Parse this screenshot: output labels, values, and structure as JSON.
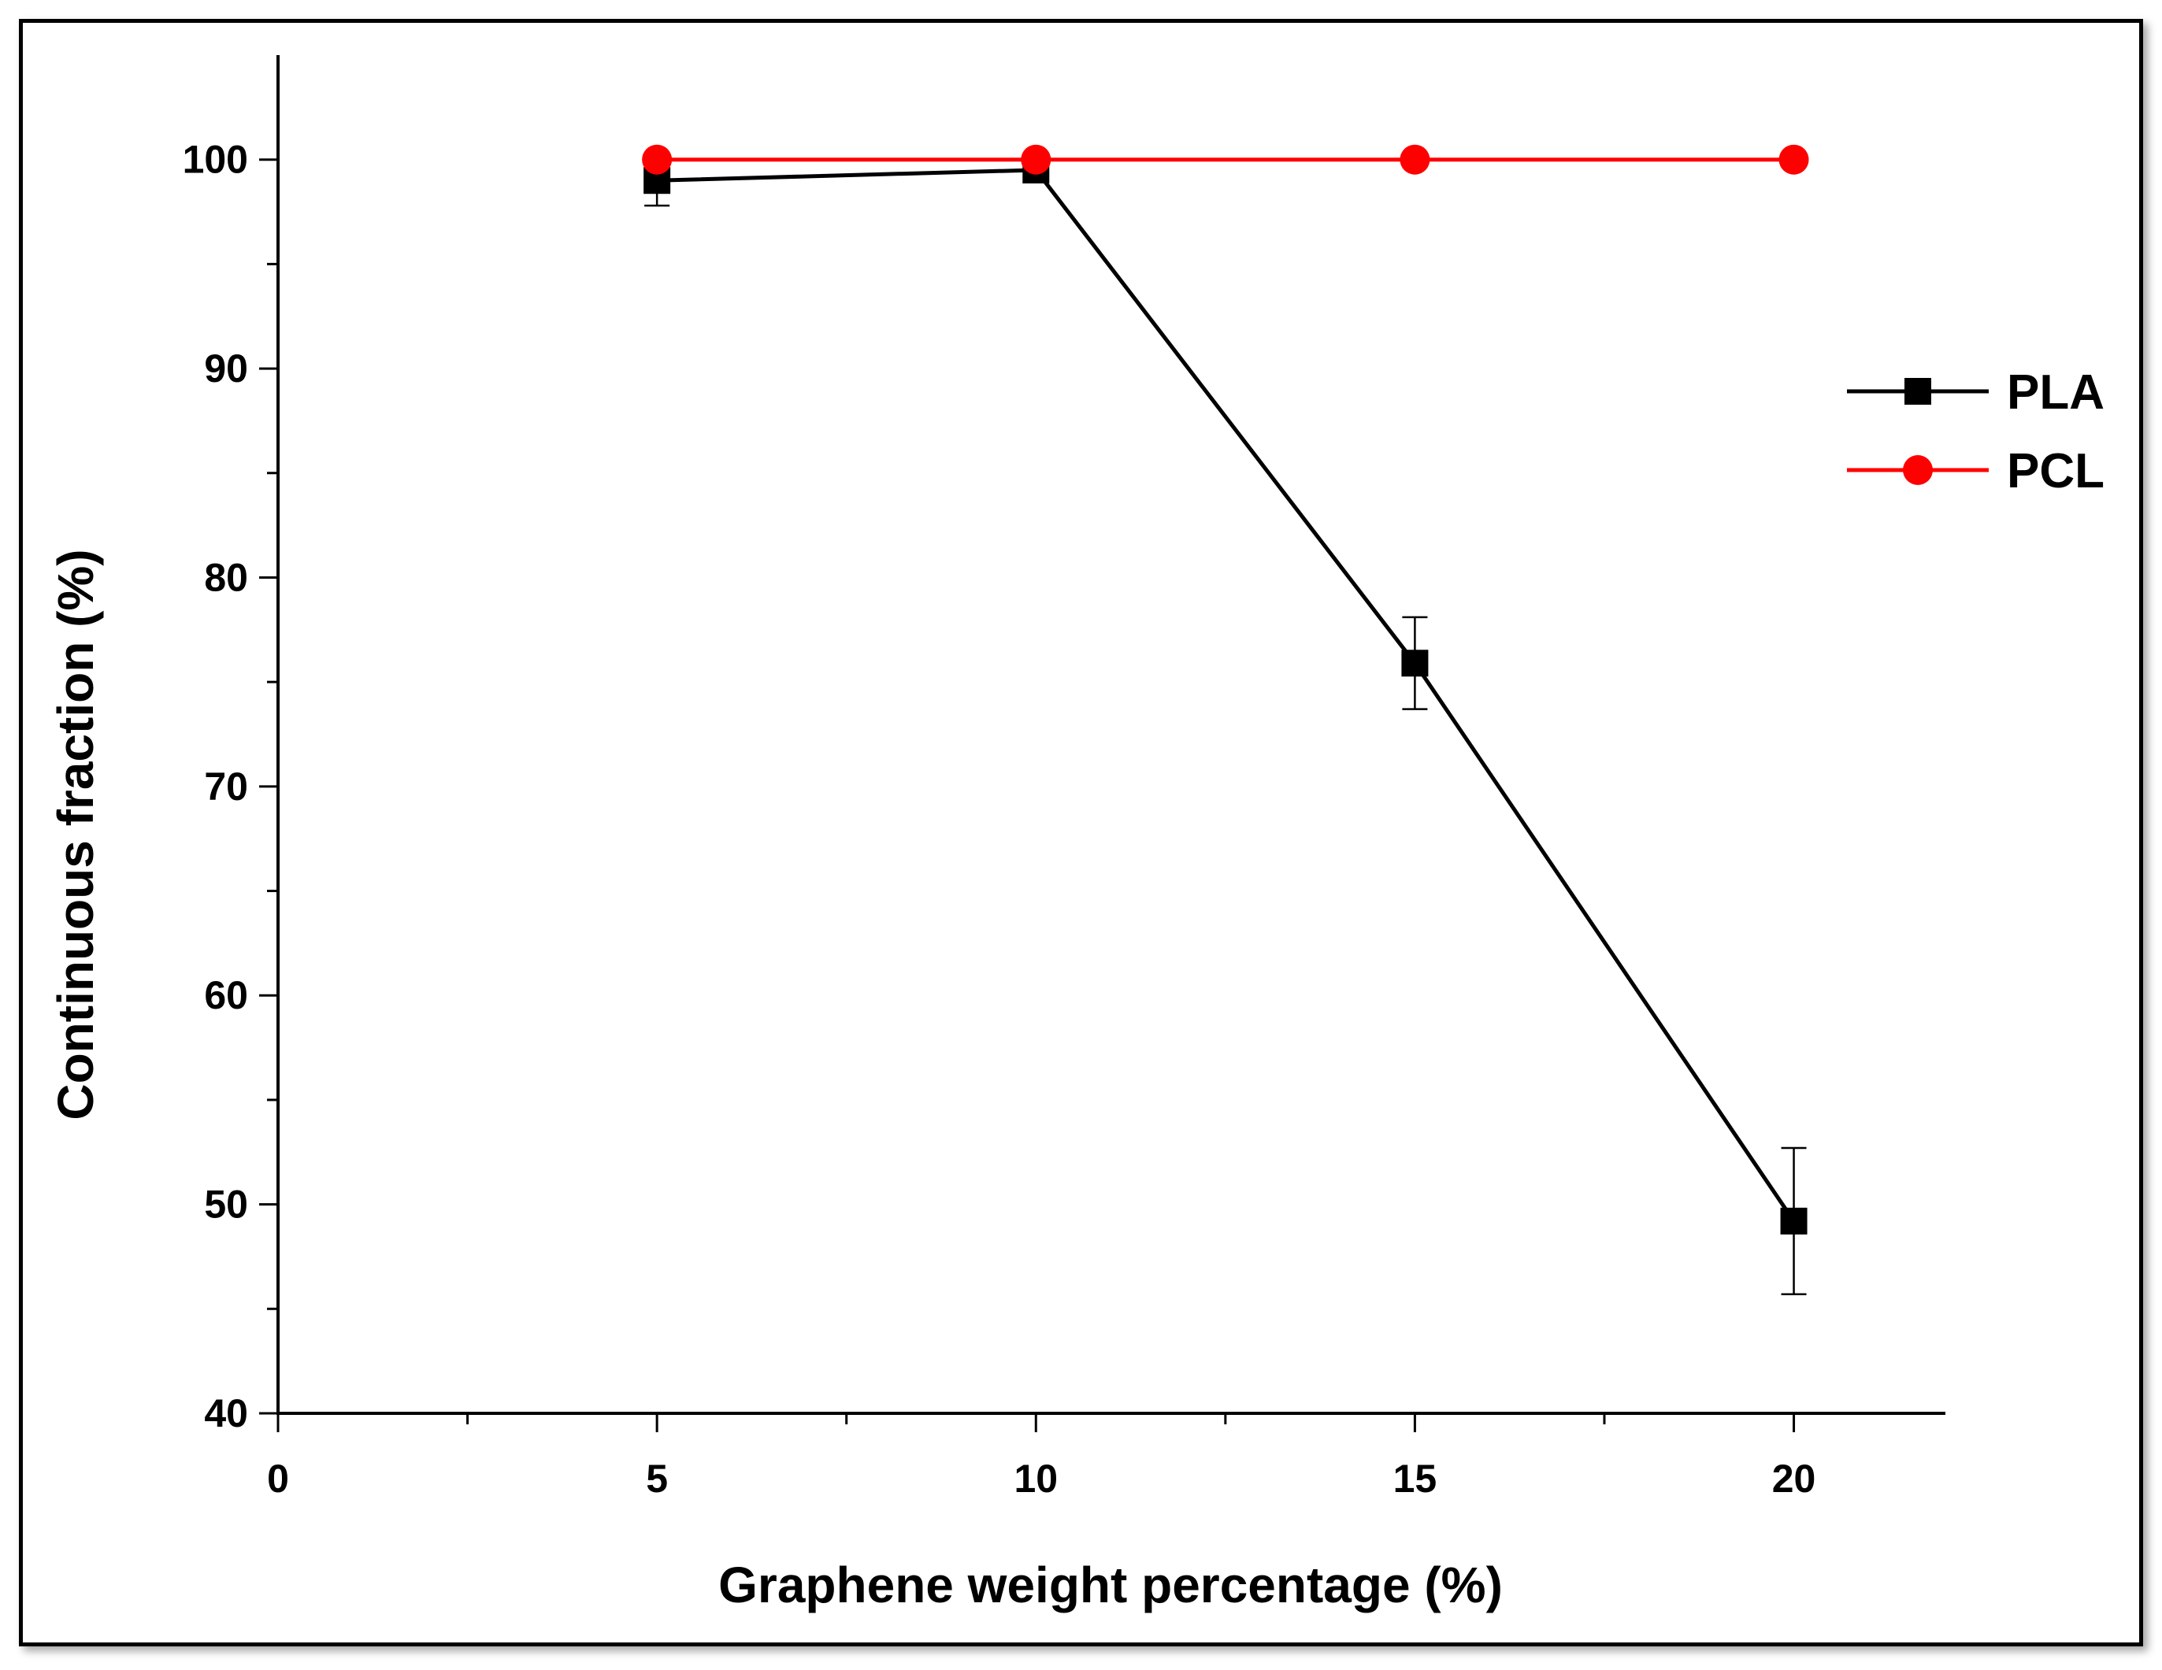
{
  "chart_data": {
    "type": "line",
    "xlabel": "Graphene weight percentage (%)",
    "ylabel": "Continuous fraction (%)",
    "xlim": [
      0,
      22
    ],
    "ylim": [
      40,
      105
    ],
    "xticks": [
      0,
      5,
      10,
      15,
      20
    ],
    "yticks": [
      40,
      50,
      60,
      70,
      80,
      90,
      100
    ],
    "grid": false,
    "legend": "right",
    "series": [
      {
        "name": "PLA",
        "color": "#000000",
        "marker": "square",
        "x": [
          5,
          10,
          15,
          20
        ],
        "y": [
          99.0,
          99.5,
          75.9,
          49.2
        ],
        "error": [
          1.2,
          0.3,
          2.2,
          3.5
        ]
      },
      {
        "name": "PCL",
        "color": "#ff0000",
        "marker": "circle",
        "x": [
          5,
          10,
          15,
          20
        ],
        "y": [
          100,
          100,
          100,
          100
        ]
      }
    ]
  }
}
